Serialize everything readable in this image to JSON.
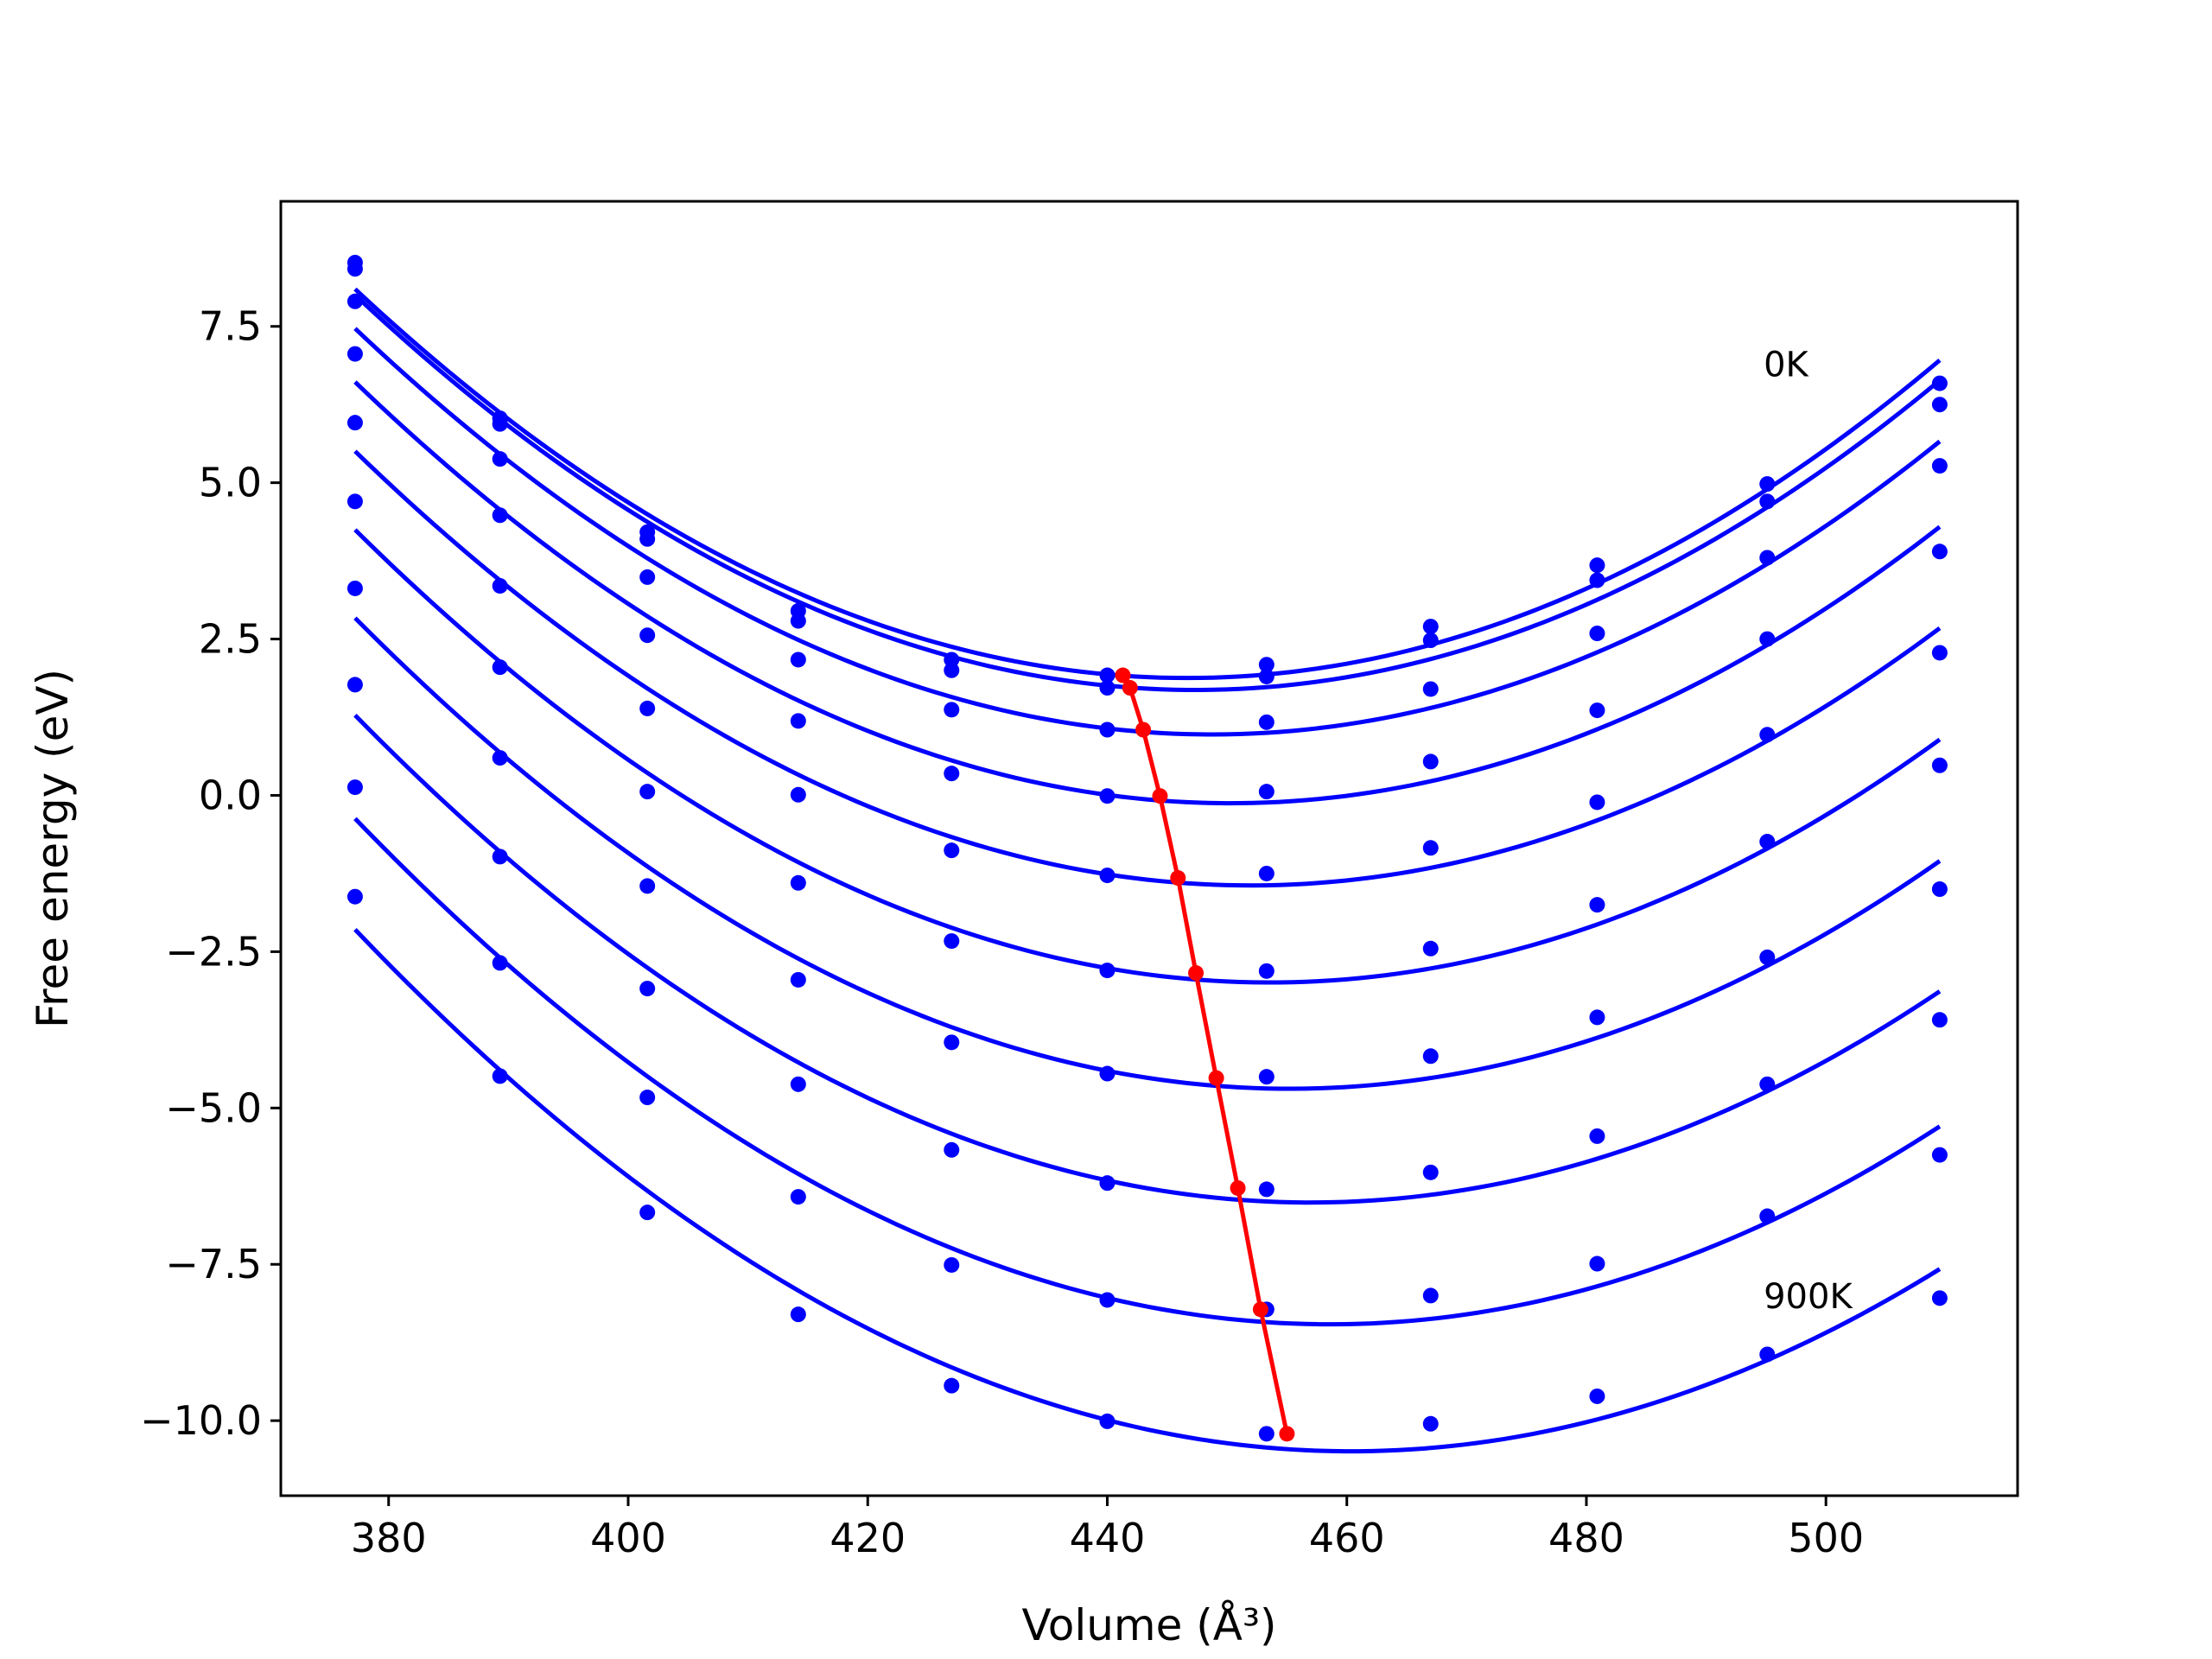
{
  "chart_data": {
    "type": "line",
    "title": "",
    "xlabel": "Volume (Å³)",
    "ylabel": "Free energy (eV)",
    "xlim": [
      371,
      516
    ],
    "ylim": [
      -11.2,
      9.5
    ],
    "xticks": [
      380,
      400,
      420,
      440,
      460,
      480,
      500
    ],
    "yticks": [
      7.5,
      5.0,
      2.5,
      0.0,
      -2.5,
      -5.0,
      -7.5,
      -10.0
    ],
    "xtick_labels": [
      "380",
      "400",
      "420",
      "440",
      "460",
      "480",
      "500"
    ],
    "ytick_labels": [
      "7.5",
      "5.0",
      "2.5",
      "0.0",
      "−2.5",
      "−5.0",
      "−7.5",
      "−10.0"
    ],
    "grid": false,
    "x": [
      377.2,
      389.3,
      401.6,
      414.2,
      427.0,
      440.0,
      453.3,
      467.0,
      480.9,
      495.1,
      509.5
    ],
    "series": [
      {
        "color": "#0000ff",
        "values": [
          8.52,
          6.03,
          4.21,
          2.95,
          2.17,
          1.92,
          2.09,
          2.7,
          3.68,
          4.98,
          6.59
        ]
      },
      {
        "color": "#0000ff",
        "values": [
          8.42,
          5.94,
          4.1,
          2.79,
          2.0,
          1.72,
          1.9,
          2.48,
          3.44,
          4.7,
          6.25
        ]
      },
      {
        "color": "#0000ff",
        "values": [
          7.9,
          5.38,
          3.49,
          2.17,
          1.37,
          1.05,
          1.17,
          1.7,
          2.59,
          3.8,
          5.27
        ]
      },
      {
        "color": "#0000ff",
        "values": [
          7.06,
          4.48,
          2.56,
          1.19,
          0.35,
          -0.01,
          0.06,
          0.54,
          1.36,
          2.5,
          3.9
        ]
      },
      {
        "color": "#0000ff",
        "values": [
          5.96,
          3.35,
          1.39,
          0.01,
          -0.88,
          -1.28,
          -1.25,
          -0.84,
          -0.11,
          0.97,
          2.28
        ]
      },
      {
        "color": "#0000ff",
        "values": [
          4.7,
          2.05,
          0.06,
          -1.4,
          -2.33,
          -2.8,
          -2.81,
          -2.45,
          -1.75,
          -0.74,
          0.48
        ]
      },
      {
        "color": "#0000ff",
        "values": [
          3.31,
          0.6,
          -1.45,
          -2.95,
          -3.95,
          -4.45,
          -4.5,
          -4.17,
          -3.55,
          -2.59,
          -1.5
        ]
      },
      {
        "color": "#0000ff",
        "values": [
          1.77,
          -0.98,
          -3.09,
          -4.62,
          -5.67,
          -6.2,
          -6.3,
          -6.03,
          -5.45,
          -4.62,
          -3.59
        ]
      },
      {
        "color": "#0000ff",
        "values": [
          0.13,
          -2.68,
          -4.83,
          -6.42,
          -7.51,
          -8.07,
          -8.22,
          -8.0,
          -7.49,
          -6.73,
          -5.75
        ]
      },
      {
        "color": "#0000ff",
        "values": [
          -1.62,
          -4.49,
          -6.67,
          -8.3,
          -9.44,
          -10.01,
          -10.21,
          -10.05,
          -9.61,
          -8.94,
          -8.04
        ]
      }
    ],
    "minima": {
      "color": "#ff0000",
      "x": [
        441.3,
        441.9,
        443.0,
        444.4,
        445.9,
        447.4,
        449.1,
        450.9,
        452.8,
        455.0
      ],
      "y": [
        1.92,
        1.72,
        1.05,
        -0.01,
        -1.32,
        -2.84,
        -4.52,
        -6.28,
        -8.22,
        -10.21
      ]
    },
    "annotations": [
      {
        "text": "0K",
        "x": 494.8,
        "y": 6.7
      },
      {
        "text": "900K",
        "x": 494.8,
        "y": -8.2
      }
    ]
  }
}
